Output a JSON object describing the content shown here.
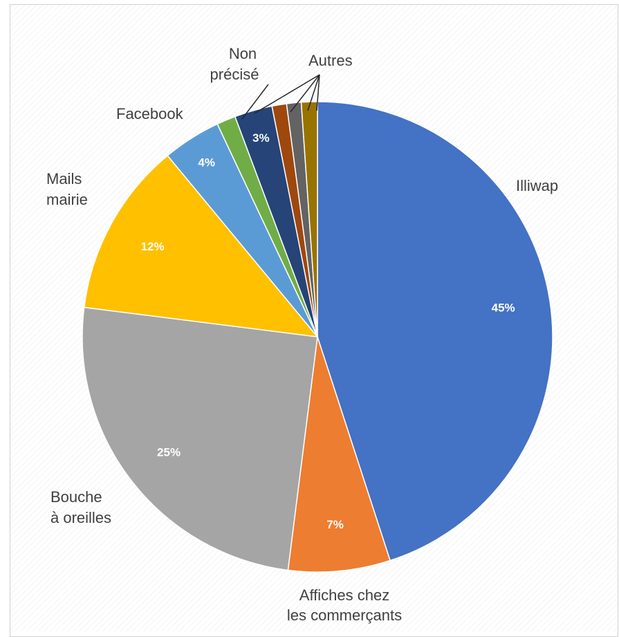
{
  "chart_data": {
    "type": "pie",
    "title": "",
    "slices": [
      {
        "label": "Illiwap",
        "value": 45,
        "value_label": "45%",
        "color": "#4472C4"
      },
      {
        "label": "Affiches chez les commerçants",
        "value": 7,
        "value_label": "7%",
        "color": "#ED7D31"
      },
      {
        "label": "Bouche à oreilles",
        "value": 25,
        "value_label": "25%",
        "color": "#A5A5A5"
      },
      {
        "label": "Mails mairie",
        "value": 12,
        "value_label": "12%",
        "color": "#FFC000"
      },
      {
        "label": "",
        "value": 4,
        "value_label": "4%",
        "color": "#5B9BD5"
      },
      {
        "label": "Facebook",
        "value": 1.3,
        "value_label": "",
        "color": "#70AD47"
      },
      {
        "label": "Non précisé",
        "value": 2.6,
        "value_label": "3%",
        "color": "#264478"
      },
      {
        "label": "",
        "value": 1.0,
        "value_label": "",
        "color": "#9E480E"
      },
      {
        "label": "",
        "value": 1.0,
        "value_label": "",
        "color": "#636363"
      },
      {
        "label": "",
        "value": 1.1,
        "value_label": "",
        "color": "#997300"
      }
    ],
    "annotations": {
      "illiwap": "Illiwap",
      "affiches": [
        "Affiches chez",
        "les commerçants"
      ],
      "bouche": [
        "Bouche",
        "à oreilles"
      ],
      "mails": [
        "Mails",
        "mairie"
      ],
      "facebook": "Facebook",
      "non_precise": [
        "Non",
        "précisé"
      ],
      "autres": "Autres"
    }
  }
}
